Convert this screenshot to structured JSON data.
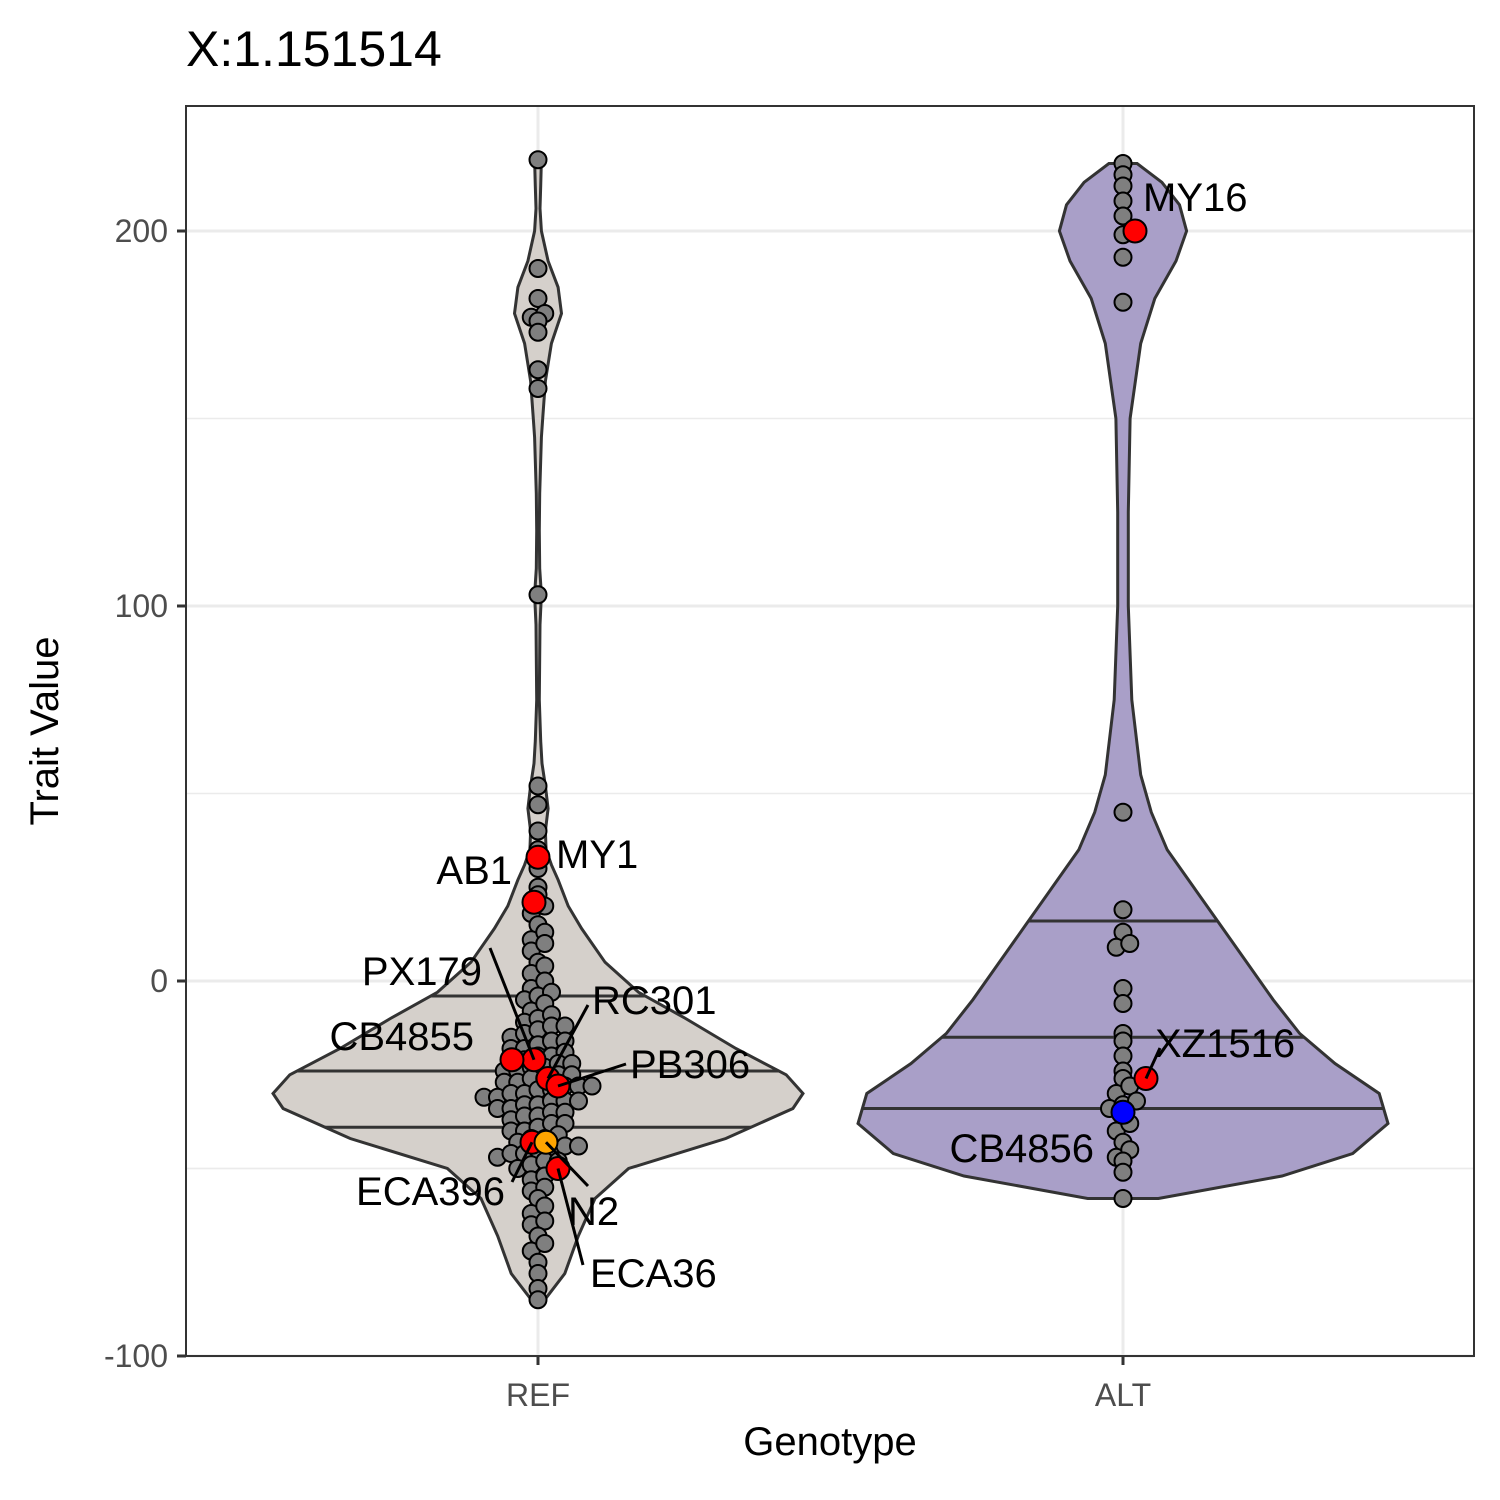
{
  "chart_data": {
    "type": "violin",
    "title": "X:1.151514",
    "xlabel": "Genotype",
    "ylabel": "Trait Value",
    "categories": [
      "REF",
      "ALT"
    ],
    "ylim": [
      -100,
      220
    ],
    "y_ticks": [
      -100,
      0,
      100,
      200
    ],
    "y_tick_labels": [
      "-100",
      "0",
      "100",
      "200"
    ],
    "grid": true,
    "colors": {
      "REF": "#d5d0cb",
      "ALT": "#a99fc8",
      "point": "#7f7f7f",
      "highlight": "#ff0000",
      "reference_strain": "#ffa500",
      "alternate_strain": "#0000ff"
    },
    "violins": [
      {
        "category": "REF",
        "min": -85,
        "max": 219,
        "quantiles": [
          -39,
          -24,
          -4
        ],
        "density": [
          [
            -85,
            0.02
          ],
          [
            -78,
            0.08
          ],
          [
            -68,
            0.12
          ],
          [
            -58,
            0.17
          ],
          [
            -50,
            0.27
          ],
          [
            -42,
            0.56
          ],
          [
            -34,
            0.76
          ],
          [
            -30,
            0.79
          ],
          [
            -25,
            0.74
          ],
          [
            -18,
            0.59
          ],
          [
            -10,
            0.44
          ],
          [
            -3,
            0.3
          ],
          [
            5,
            0.2
          ],
          [
            14,
            0.13
          ],
          [
            20,
            0.09
          ],
          [
            27,
            0.06
          ],
          [
            31,
            0.04
          ],
          [
            35,
            0.024
          ],
          [
            40,
            0.022
          ],
          [
            46,
            0.03
          ],
          [
            52,
            0.022
          ],
          [
            58,
            0.012
          ],
          [
            64,
            0.008
          ],
          [
            75,
            0.004
          ],
          [
            95,
            0.006
          ],
          [
            103,
            0.01
          ],
          [
            110,
            0.005
          ],
          [
            120,
            0.004
          ],
          [
            130,
            0.005
          ],
          [
            145,
            0.01
          ],
          [
            150,
            0.014
          ],
          [
            160,
            0.022
          ],
          [
            170,
            0.04
          ],
          [
            178,
            0.07
          ],
          [
            185,
            0.06
          ],
          [
            192,
            0.03
          ],
          [
            200,
            0.01
          ],
          [
            206,
            0.006
          ],
          [
            212,
            0.008
          ],
          [
            219,
            0.01
          ]
        ],
        "points": [
          -85,
          -82,
          -78,
          -75,
          -72,
          -70,
          -68,
          -65,
          -64,
          -62,
          -60,
          -58,
          -56,
          -55,
          -53,
          -52,
          -50,
          -49,
          -48,
          -48,
          -47,
          -46,
          -46,
          -45,
          -45,
          -44,
          -44,
          -43,
          -42,
          -42,
          -41,
          -40,
          -40,
          -39,
          -38,
          -38,
          -37,
          -36,
          -36,
          -35,
          -35,
          -34,
          -34,
          -33,
          -33,
          -32,
          -32,
          -32,
          -31,
          -31,
          -30,
          -30,
          -29,
          -29,
          -28,
          -28,
          -28,
          -27,
          -27,
          -26,
          -26,
          -25,
          -25,
          -24,
          -24,
          -23,
          -23,
          -22,
          -22,
          -21,
          -21,
          -20,
          -20,
          -19,
          -18,
          -18,
          -17,
          -16,
          -16,
          -15,
          -14,
          -13,
          -12,
          -12,
          -11,
          -10,
          -9,
          -8,
          -6,
          -5,
          -4,
          -3,
          -2,
          0,
          2,
          4,
          5,
          8,
          10,
          11,
          13,
          15,
          18,
          20,
          23,
          25,
          30,
          35,
          40,
          47,
          52,
          103,
          158,
          163,
          173,
          176,
          177,
          178,
          182,
          190,
          219
        ],
        "highlighted": [
          {
            "label": "MY1",
            "value": 33,
            "color": "#ff0000"
          },
          {
            "label": "AB1",
            "value": 21,
            "color": "#ff0000"
          },
          {
            "label": "PX179",
            "value": -21,
            "color": "#ff0000"
          },
          {
            "label": "CB4855",
            "value": -21,
            "color": "#ff0000"
          },
          {
            "label": "RC301",
            "value": -26,
            "color": "#ff0000"
          },
          {
            "label": "PB306",
            "value": -28,
            "color": "#ff0000"
          },
          {
            "label": "ECA396",
            "value": -43,
            "color": "#ff0000"
          },
          {
            "label": "N2",
            "value": -43,
            "color": "#ffa500"
          },
          {
            "label": "ECA36",
            "value": -50,
            "color": "#ff0000"
          }
        ]
      },
      {
        "category": "ALT",
        "min": -58,
        "max": 218,
        "quantiles": [
          -34,
          -15,
          16
        ],
        "density": [
          [
            -58,
            0.02
          ],
          [
            -52,
            0.09
          ],
          [
            -46,
            0.13
          ],
          [
            -38,
            0.15
          ],
          [
            -30,
            0.145
          ],
          [
            -22,
            0.12
          ],
          [
            -14,
            0.1
          ],
          [
            -5,
            0.085
          ],
          [
            5,
            0.07
          ],
          [
            15,
            0.055
          ],
          [
            25,
            0.04
          ],
          [
            35,
            0.025
          ],
          [
            45,
            0.016
          ],
          [
            55,
            0.01
          ],
          [
            75,
            0.005
          ],
          [
            100,
            0.003
          ],
          [
            125,
            0.003
          ],
          [
            150,
            0.004
          ],
          [
            170,
            0.01
          ],
          [
            182,
            0.018
          ],
          [
            192,
            0.03
          ],
          [
            200,
            0.036
          ],
          [
            207,
            0.032
          ],
          [
            213,
            0.022
          ],
          [
            218,
            0.008
          ]
        ],
        "points": [
          -58,
          -51,
          -48,
          -47,
          -45,
          -43,
          -40,
          -38,
          -36,
          -34,
          -33,
          -32,
          -30,
          -28,
          -26,
          -24,
          -20,
          -16,
          -14,
          -6,
          -2,
          9,
          10,
          13,
          19,
          45,
          181,
          193,
          199,
          204,
          208,
          212,
          215,
          218
        ],
        "highlighted": [
          {
            "label": "MY16",
            "value": 200,
            "color": "#ff0000"
          },
          {
            "label": "XZ1516",
            "value": -26,
            "color": "#ff0000"
          },
          {
            "label": "CB4856",
            "value": -35,
            "color": "#0000ff"
          }
        ]
      }
    ]
  }
}
